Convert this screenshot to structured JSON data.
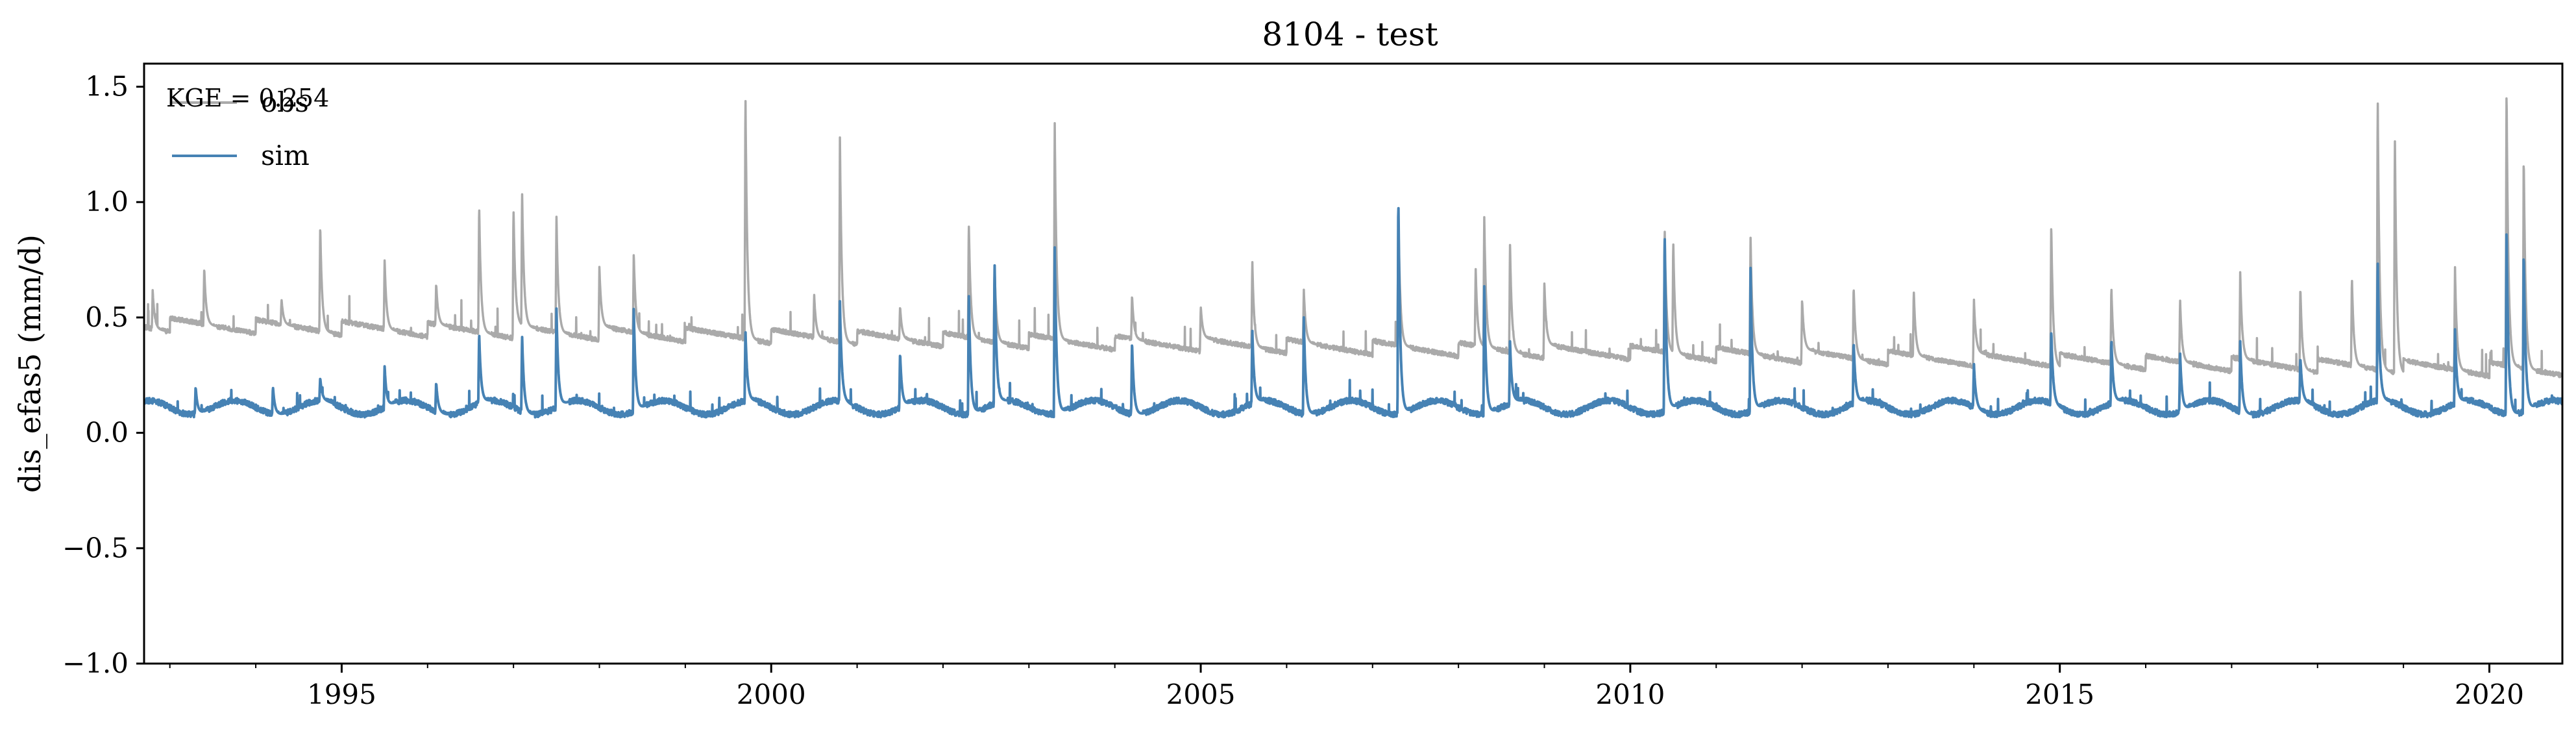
{
  "chart_data": {
    "type": "line",
    "title": "8104 - test",
    "xlabel": "",
    "ylabel": "dis_efas5 (mm/d)",
    "xlim": [
      1992.7,
      2020.85
    ],
    "ylim": [
      -1.0,
      1.6
    ],
    "x_ticks": [
      1995,
      2000,
      2005,
      2010,
      2015,
      2020
    ],
    "x_tick_labels": [
      "1995",
      "2000",
      "2005",
      "2010",
      "2015",
      "2020"
    ],
    "y_ticks": [
      -1.0,
      -0.5,
      0.0,
      0.5,
      1.0,
      1.5
    ],
    "y_tick_labels": [
      "−1.0",
      "−0.5",
      "0.0",
      "0.5",
      "1.0",
      "1.5"
    ],
    "grid": false,
    "legend_position": "top-left",
    "annotation": "KGE = 0.254",
    "series": [
      {
        "name": "obs",
        "color": "#aaaaaa",
        "peaks": [
          [
            1992.8,
            0.62
          ],
          [
            1993.4,
            0.72
          ],
          [
            1994.3,
            0.58
          ],
          [
            1994.75,
            0.91
          ],
          [
            1995.5,
            0.75
          ],
          [
            1996.1,
            0.65
          ],
          [
            1996.6,
            1.0
          ],
          [
            1997.0,
            0.98
          ],
          [
            1997.1,
            1.06
          ],
          [
            1997.5,
            0.95
          ],
          [
            1998.0,
            0.72
          ],
          [
            1998.4,
            0.78
          ],
          [
            1999.7,
            1.49
          ],
          [
            2000.5,
            0.6
          ],
          [
            2000.8,
            1.28
          ],
          [
            2001.5,
            0.55
          ],
          [
            2002.3,
            0.92
          ],
          [
            2002.6,
            0.72
          ],
          [
            2003.3,
            1.35
          ],
          [
            2004.2,
            0.6
          ],
          [
            2005.0,
            0.55
          ],
          [
            2005.6,
            0.75
          ],
          [
            2006.2,
            0.62
          ],
          [
            2007.3,
            0.98
          ],
          [
            2008.2,
            0.72
          ],
          [
            2008.3,
            0.95
          ],
          [
            2008.6,
            0.82
          ],
          [
            2009.0,
            0.65
          ],
          [
            2010.4,
            0.9
          ],
          [
            2010.5,
            0.84
          ],
          [
            2011.4,
            0.85
          ],
          [
            2012.0,
            0.58
          ],
          [
            2012.6,
            0.64
          ],
          [
            2013.3,
            0.62
          ],
          [
            2014.0,
            0.58
          ],
          [
            2014.9,
            0.92
          ],
          [
            2015.6,
            0.64
          ],
          [
            2016.4,
            0.58
          ],
          [
            2017.1,
            0.7
          ],
          [
            2017.8,
            0.64
          ],
          [
            2018.4,
            0.68
          ],
          [
            2018.7,
            1.48
          ],
          [
            2018.9,
            1.3
          ],
          [
            2019.6,
            0.72
          ],
          [
            2020.2,
            1.51
          ],
          [
            2020.4,
            1.22
          ]
        ]
      },
      {
        "name": "sim",
        "color": "#4682b4",
        "peaks": [
          [
            1993.3,
            0.2
          ],
          [
            1994.2,
            0.2
          ],
          [
            1994.75,
            0.24
          ],
          [
            1995.5,
            0.29
          ],
          [
            1996.1,
            0.22
          ],
          [
            1996.6,
            0.44
          ],
          [
            1997.1,
            0.43
          ],
          [
            1997.5,
            0.55
          ],
          [
            1998.4,
            0.55
          ],
          [
            1999.7,
            0.45
          ],
          [
            2000.8,
            0.57
          ],
          [
            2001.5,
            0.35
          ],
          [
            2002.3,
            0.62
          ],
          [
            2002.6,
            0.75
          ],
          [
            2003.3,
            0.81
          ],
          [
            2004.2,
            0.4
          ],
          [
            2005.6,
            0.45
          ],
          [
            2006.2,
            0.5
          ],
          [
            2007.3,
            1.04
          ],
          [
            2008.3,
            0.65
          ],
          [
            2008.6,
            0.4
          ],
          [
            2010.4,
            0.88
          ],
          [
            2011.4,
            0.72
          ],
          [
            2012.6,
            0.4
          ],
          [
            2014.0,
            0.3
          ],
          [
            2014.9,
            0.45
          ],
          [
            2015.6,
            0.41
          ],
          [
            2016.4,
            0.35
          ],
          [
            2017.1,
            0.4
          ],
          [
            2017.8,
            0.33
          ],
          [
            2018.7,
            0.76
          ],
          [
            2019.6,
            0.45
          ],
          [
            2020.2,
            0.9
          ],
          [
            2020.4,
            0.8
          ]
        ]
      }
    ]
  }
}
